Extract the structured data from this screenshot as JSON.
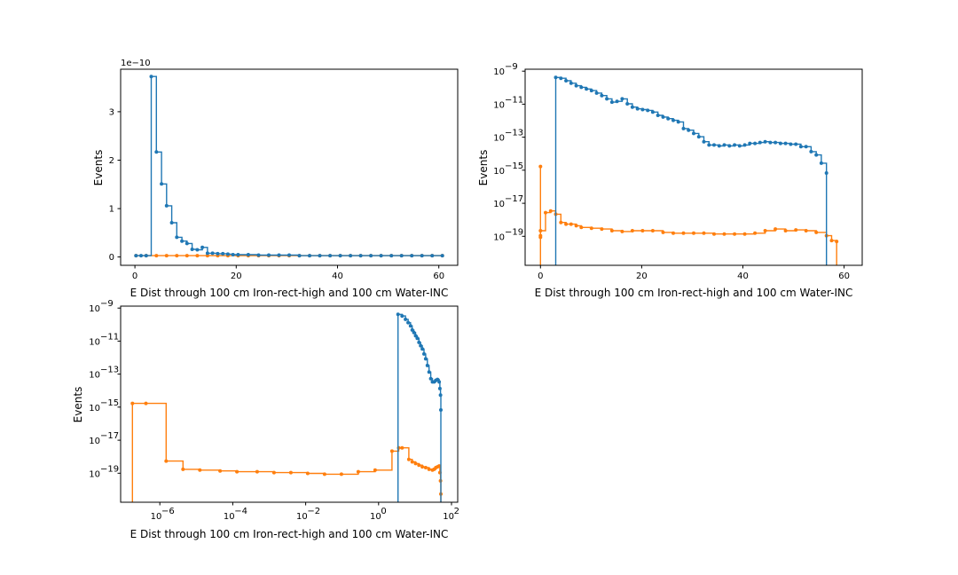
{
  "colors": {
    "blue": "#1f77b4",
    "orange": "#ff7f0e"
  },
  "chart_data": [
    {
      "type": "line",
      "id": "top-left",
      "xscale": "linear",
      "yscale": "linear",
      "xlabel": "E Dist through 100 cm Iron-rect-high and 100 cm Water-INC",
      "ylabel": "Events",
      "offset_text": "1e−10",
      "xlim": [
        -3,
        63
      ],
      "ylim": [
        -0.2,
        3.85
      ],
      "xticks": [
        0,
        20,
        40,
        60
      ],
      "xtick_labels": [
        "0",
        "20",
        "40",
        "60"
      ],
      "yticks": [
        0,
        1,
        2,
        3
      ],
      "ytick_labels": [
        "0",
        "1",
        "2",
        "3"
      ],
      "series": [
        {
          "name": "blue",
          "color": "#1f77b4",
          "x": [
            0,
            1,
            2,
            3,
            4,
            5,
            6,
            7,
            8,
            9,
            10,
            11,
            12,
            13,
            14,
            15,
            16,
            17,
            18,
            19,
            20,
            22,
            24,
            26,
            28,
            30,
            32,
            34,
            36,
            38,
            40,
            42,
            44,
            46,
            48,
            50,
            52,
            54,
            56,
            58,
            60
          ],
          "y": [
            0,
            0,
            0,
            3.7,
            2.14,
            1.48,
            1.03,
            0.68,
            0.38,
            0.3,
            0.25,
            0.13,
            0.12,
            0.17,
            0.05,
            0.05,
            0.04,
            0.04,
            0.03,
            0.02,
            0.02,
            0.02,
            0.01,
            0.01,
            0.01,
            0.01,
            0,
            0,
            0,
            0,
            0,
            0,
            0,
            0,
            0,
            0,
            0,
            0,
            0,
            0,
            0
          ]
        },
        {
          "name": "orange",
          "color": "#ff7f0e",
          "x": [
            0,
            2,
            4,
            6,
            8,
            10,
            12,
            14,
            16,
            18,
            20,
            22,
            24,
            26,
            28,
            30,
            32,
            34,
            36,
            38,
            40,
            42,
            44,
            46,
            48,
            50,
            52,
            54,
            56,
            58,
            60
          ],
          "y": [
            0,
            0,
            0,
            0,
            0,
            0,
            0,
            0,
            0,
            0,
            0,
            0,
            0,
            0,
            0,
            0,
            0,
            0,
            0,
            0,
            0,
            0,
            0,
            0,
            0,
            0,
            0,
            0,
            0,
            0,
            0
          ]
        }
      ]
    },
    {
      "type": "line",
      "id": "top-right",
      "xscale": "linear",
      "yscale": "log",
      "xlabel": "E Dist through 100 cm Iron-rect-high and 100 cm Water-INC",
      "ylabel": "Events",
      "xlim": [
        -3,
        63
      ],
      "ylim_exp": [
        -20.8,
        -8.9
      ],
      "xticks": [
        0,
        20,
        40,
        60
      ],
      "xtick_labels": [
        "0",
        "20",
        "40",
        "60"
      ],
      "yticks_exp": [
        -19,
        -17,
        -15,
        -13,
        -11,
        -9
      ],
      "ytick_labels": [
        "10",
        "10",
        "10",
        "10",
        "10",
        "10"
      ],
      "ytick_exponents": [
        "−19",
        "−17",
        "−15",
        "−13",
        "−11",
        "−9"
      ],
      "series": [
        {
          "name": "blue",
          "color": "#1f77b4",
          "x": [
            3,
            4,
            5,
            6,
            7,
            8,
            9,
            10,
            11,
            12,
            13,
            14,
            15,
            16,
            17,
            18,
            19,
            20,
            21,
            22,
            23,
            24,
            25,
            26,
            27,
            28,
            29,
            30,
            31,
            32,
            33,
            34,
            35,
            36,
            37,
            38,
            39,
            40,
            41,
            42,
            43,
            44,
            45,
            46,
            47,
            48,
            49,
            50,
            51,
            52,
            53,
            54,
            55,
            56
          ],
          "y_exp": [
            -9.4,
            -9.45,
            -9.6,
            -9.75,
            -9.9,
            -10.0,
            -10.1,
            -10.2,
            -10.35,
            -10.5,
            -10.7,
            -10.9,
            -10.85,
            -10.7,
            -11.0,
            -11.2,
            -11.3,
            -11.35,
            -11.4,
            -11.5,
            -11.7,
            -11.8,
            -11.9,
            -12.0,
            -12.1,
            -12.5,
            -12.6,
            -12.8,
            -13.0,
            -13.3,
            -13.5,
            -13.5,
            -13.55,
            -13.5,
            -13.55,
            -13.5,
            -13.55,
            -13.5,
            -13.4,
            -13.4,
            -13.35,
            -13.3,
            -13.35,
            -13.35,
            -13.4,
            -13.4,
            -13.45,
            -13.45,
            -13.6,
            -13.6,
            -13.9,
            -14.1,
            -14.6,
            -15.2
          ]
        },
        {
          "name": "orange",
          "color": "#ff7f0e",
          "x": [
            0,
            0,
            0,
            0,
            1,
            2,
            3,
            4,
            5,
            6,
            7,
            8,
            10,
            12,
            14,
            16,
            18,
            20,
            22,
            24,
            26,
            28,
            30,
            32,
            34,
            36,
            38,
            40,
            42,
            44,
            46,
            48,
            50,
            52,
            54,
            56,
            57,
            58
          ],
          "y_exp": [
            -14.8,
            -19.1,
            -19.0,
            -18.7,
            -17.6,
            -17.5,
            -17.7,
            -18.2,
            -18.3,
            -18.3,
            -18.4,
            -18.5,
            -18.55,
            -18.6,
            -18.7,
            -18.75,
            -18.7,
            -18.7,
            -18.7,
            -18.8,
            -18.85,
            -18.85,
            -18.85,
            -18.85,
            -18.9,
            -18.9,
            -18.9,
            -18.9,
            -18.85,
            -18.7,
            -18.6,
            -18.7,
            -18.65,
            -18.7,
            -18.8,
            -19.0,
            -19.3,
            -19.35
          ]
        }
      ]
    },
    {
      "type": "line",
      "id": "bottom-left",
      "xscale": "log",
      "yscale": "log",
      "xlabel": "E Dist through 100 cm Iron-rect-high and 100 cm Water-INC",
      "ylabel": "Events",
      "xlim_exp": [
        -7.75,
        2.25
      ],
      "ylim_exp": [
        -20.8,
        -8.9
      ],
      "xticks_exp": [
        -6,
        -4,
        -2,
        0,
        2
      ],
      "xtick_labels": [
        "10",
        "10",
        "10",
        "10",
        "10"
      ],
      "xtick_exponents": [
        "−6",
        "−4",
        "−2",
        "0",
        "2"
      ],
      "yticks_exp": [
        -19,
        -17,
        -15,
        -13,
        -11,
        -9
      ],
      "ytick_labels": [
        "10",
        "10",
        "10",
        "10",
        "10",
        "10"
      ],
      "ytick_exponents": [
        "−19",
        "−17",
        "−15",
        "−13",
        "−11",
        "−9"
      ],
      "series": [
        {
          "name": "blue",
          "color": "#1f77b4",
          "x_exp": [
            0.48,
            0.6,
            0.7,
            0.78,
            0.85,
            0.9,
            0.95,
            1.0,
            1.05,
            1.1,
            1.15,
            1.2,
            1.25,
            1.3,
            1.35,
            1.4,
            1.45,
            1.5,
            1.55,
            1.6,
            1.65,
            1.7,
            1.72,
            1.74,
            1.75
          ],
          "y_exp": [
            -9.4,
            -9.5,
            -9.7,
            -9.9,
            -10.1,
            -10.35,
            -10.5,
            -10.7,
            -10.85,
            -11.1,
            -11.3,
            -11.5,
            -11.8,
            -12.1,
            -12.5,
            -12.9,
            -13.3,
            -13.5,
            -13.5,
            -13.4,
            -13.35,
            -13.5,
            -13.9,
            -14.3,
            -15.2
          ]
        },
        {
          "name": "orange",
          "color": "#ff7f0e",
          "x_exp": [
            -7.4,
            -7.0,
            -6.4,
            -5.9,
            -5.4,
            -4.8,
            -4.3,
            -3.7,
            -3.2,
            -2.7,
            -2.2,
            -1.7,
            -1.2,
            -0.7,
            -0.2,
            0.3,
            0.5,
            0.6,
            0.8,
            0.9,
            1.0,
            1.1,
            1.2,
            1.3,
            1.4,
            1.5,
            1.55,
            1.6,
            1.65,
            1.7,
            1.72,
            1.74,
            1.75
          ],
          "y_exp": [
            -14.8,
            -14.8,
            -18.3,
            -18.8,
            -18.85,
            -18.9,
            -18.95,
            -18.95,
            -19.0,
            -19.0,
            -19.05,
            -19.1,
            -19.1,
            -18.95,
            -18.85,
            -17.7,
            -17.5,
            -17.5,
            -18.2,
            -18.35,
            -18.45,
            -18.55,
            -18.65,
            -18.7,
            -18.8,
            -18.85,
            -18.8,
            -18.7,
            -18.65,
            -18.6,
            -19.0,
            -19.5,
            -20.3
          ]
        }
      ]
    }
  ]
}
